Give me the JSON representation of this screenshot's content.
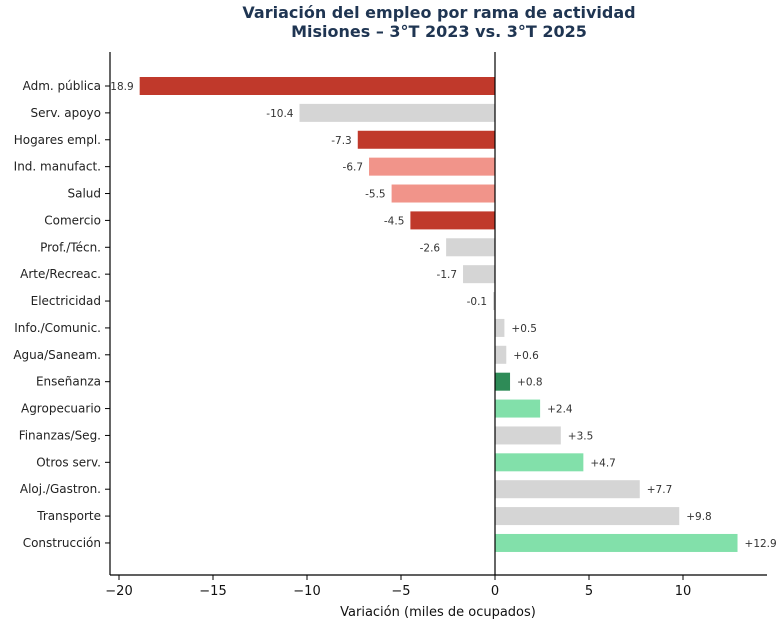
{
  "chart_data": {
    "type": "bar",
    "orientation": "horizontal",
    "title": "Variación del empleo por rama de actividad",
    "subtitle": "Misiones – 3°T 2023 vs. 3°T 2025",
    "xlabel": "Variación (miles de ocupados)",
    "ylabel": "",
    "xlim": [
      -20.5,
      14.5
    ],
    "xticks": [
      -20,
      -15,
      -10,
      -5,
      0,
      5,
      10
    ],
    "xtick_labels": [
      "−20",
      "−15",
      "−10",
      "−5",
      "0",
      "5",
      "10"
    ],
    "grid": false,
    "legend": null,
    "categories": [
      "Adm. pública",
      "Serv. apoyo",
      "Hogares empl.",
      "Ind. manufact.",
      "Salud",
      "Comercio",
      "Prof./Técn.",
      "Arte/Recreac.",
      "Electricidad",
      "Info./Comunic.",
      "Agua/Saneam.",
      "Enseñanza",
      "Agropecuario",
      "Finanzas/Seg.",
      "Otros serv.",
      "Aloj./Gastron.",
      "Transporte",
      "Construcción"
    ],
    "values": [
      -18.9,
      -10.4,
      -7.3,
      -6.7,
      -5.5,
      -4.5,
      -2.6,
      -1.7,
      -0.1,
      0.5,
      0.6,
      0.8,
      2.4,
      3.5,
      4.7,
      7.7,
      9.8,
      12.9
    ],
    "value_labels": [
      "-18.9",
      "-10.4",
      "-7.3",
      "-6.7",
      "-5.5",
      "-4.5",
      "-2.6",
      "-1.7",
      "-0.1",
      "+0.5",
      "+0.6",
      "+0.8",
      "+2.4",
      "+3.5",
      "+4.7",
      "+7.7",
      "+9.8",
      "+12.9"
    ],
    "colors": [
      "#c0392b",
      "#d5d5d5",
      "#c0392b",
      "#f1948a",
      "#f1948a",
      "#c0392b",
      "#d5d5d5",
      "#d5d5d5",
      "#d5d5d5",
      "#d5d5d5",
      "#d5d5d5",
      "#2e8b57",
      "#82e0aa",
      "#d5d5d5",
      "#82e0aa",
      "#d5d5d5",
      "#d5d5d5",
      "#82e0aa"
    ]
  }
}
